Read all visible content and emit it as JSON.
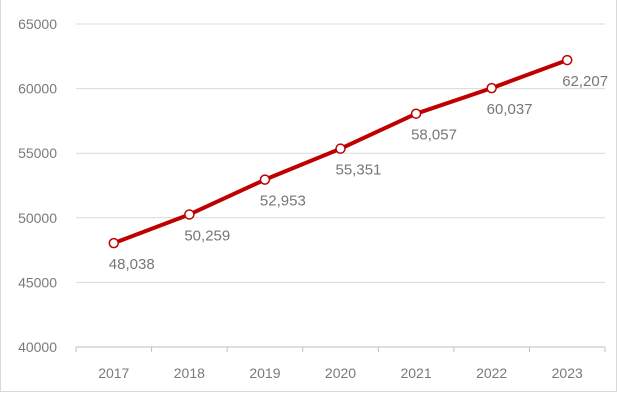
{
  "chart_data": {
    "type": "line",
    "title": "",
    "xlabel": "",
    "ylabel": "",
    "categories": [
      "2017",
      "2018",
      "2019",
      "2020",
      "2021",
      "2022",
      "2023"
    ],
    "series": [
      {
        "values": [
          48038,
          50259,
          52953,
          55351,
          58057,
          60037,
          62207
        ],
        "labels": [
          "48,038",
          "50,259",
          "52,953",
          "55,351",
          "58,057",
          "60,037",
          "62,207"
        ],
        "color": "#c00000"
      }
    ],
    "ylim": [
      40000,
      65000
    ],
    "yticks": [
      "40000",
      "45000",
      "50000",
      "55000",
      "60000",
      "65000"
    ],
    "grid": true,
    "legend": "none"
  }
}
